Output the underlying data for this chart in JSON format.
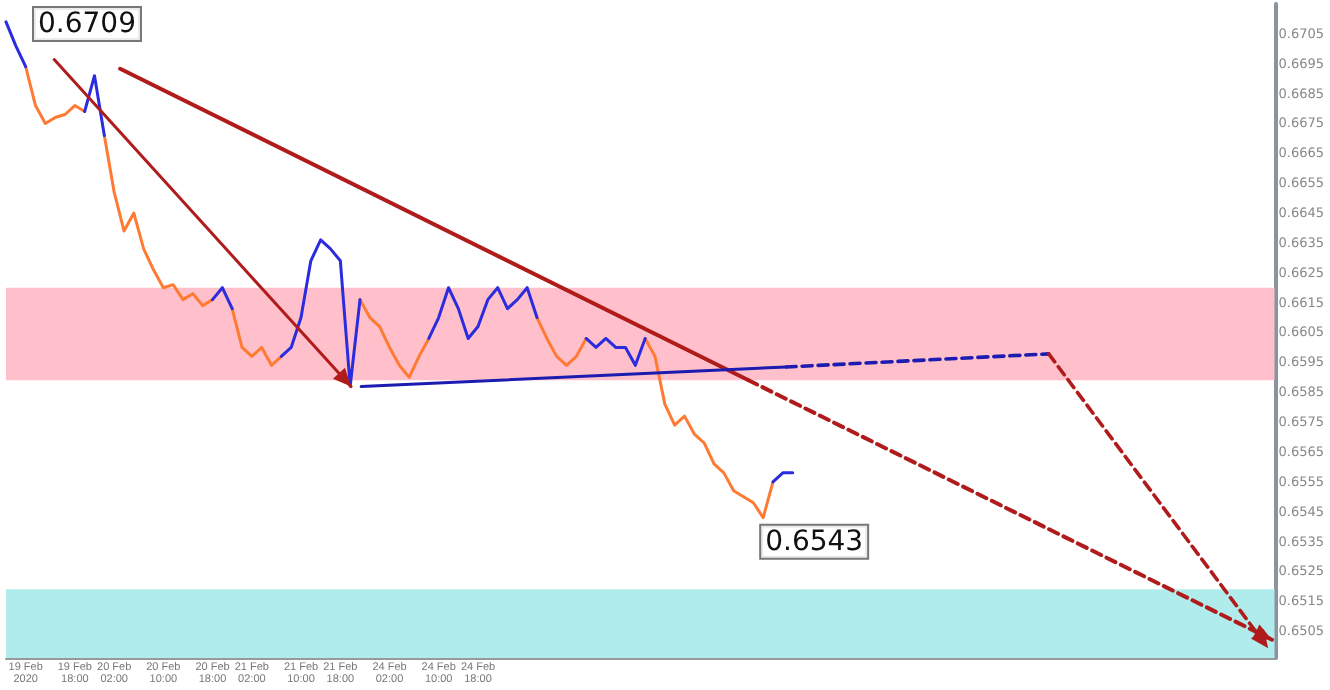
{
  "chart_data": {
    "type": "line",
    "categories": [
      null,
      null,
      "19 Feb 2020",
      null,
      null,
      null,
      null,
      "19 Feb 18:00",
      null,
      null,
      null,
      "20 Feb 02:00",
      null,
      null,
      null,
      null,
      "20 Feb 10:00",
      null,
      null,
      null,
      null,
      "20 Feb 18:00",
      null,
      null,
      null,
      "21 Feb 02:00",
      null,
      null,
      null,
      null,
      "21 Feb 10:00",
      null,
      null,
      null,
      "21 Feb 18:00",
      null,
      null,
      null,
      null,
      "24 Feb 02:00",
      null,
      null,
      null,
      null,
      "24 Feb 10:00",
      null,
      null,
      null,
      "24 Feb 18:00",
      null,
      null,
      null,
      null,
      null,
      null,
      null,
      null,
      null,
      null,
      null,
      null,
      null,
      null,
      null,
      null,
      null,
      null,
      null,
      null,
      null,
      null,
      null,
      null,
      null,
      null,
      null,
      null,
      null,
      null,
      null,
      null,
      null,
      null,
      null,
      null,
      null,
      null,
      null,
      null,
      null,
      null,
      null,
      null,
      null,
      null,
      null,
      null,
      null,
      null,
      null,
      null,
      null,
      null,
      null,
      null,
      null,
      null,
      null,
      null,
      null,
      null,
      null,
      null,
      null,
      null,
      null,
      null,
      null,
      null,
      null,
      null,
      null,
      null,
      null,
      null,
      null,
      null,
      null,
      null,
      null
    ],
    "ylim": [
      0.6496,
      0.6715
    ],
    "yticks": [
      0.6505,
      0.6515,
      0.6525,
      0.6535,
      0.6545,
      0.6555,
      0.6565,
      0.6575,
      0.6585,
      0.6595,
      0.6605,
      0.6615,
      0.6625,
      0.6635,
      0.6645,
      0.6655,
      0.6665,
      0.6675,
      0.6685,
      0.6695,
      0.6705
    ],
    "grid": false,
    "marker": "none",
    "series": [
      {
        "color": "#ff7a33",
        "values": [
          null,
          null,
          0.6694,
          0.6681,
          0.6675,
          0.6677,
          0.6678,
          0.6681,
          0.6679,
          null,
          0.6671,
          0.6652,
          0.6639,
          0.6645,
          0.6633,
          0.6626,
          0.662,
          0.6621,
          0.6616,
          0.6618,
          0.6614,
          0.6616,
          null,
          0.6613,
          0.66,
          0.6597,
          0.66,
          0.6594,
          0.6597,
          null,
          null,
          null,
          null,
          null,
          null,
          null,
          0.6616,
          0.661,
          0.6607,
          0.66,
          0.6594,
          0.659,
          0.6597,
          0.6603,
          null,
          null,
          null,
          null,
          null,
          null,
          null,
          null,
          null,
          null,
          0.661,
          0.6603,
          0.6597,
          0.6594,
          0.6597,
          0.6603,
          null,
          null,
          null,
          null,
          null,
          0.6603,
          0.6597,
          0.6581,
          0.6574,
          0.6577,
          0.6571,
          0.6568,
          0.6561,
          0.6558,
          0.6552,
          0.655,
          0.6548,
          0.6543,
          0.6555,
          null,
          null,
          null,
          null,
          null,
          null,
          null,
          null,
          null,
          null,
          null,
          null,
          null,
          null,
          null,
          null,
          null,
          null,
          null,
          null,
          null,
          null,
          null,
          null,
          null,
          null,
          null,
          null,
          null,
          null,
          null,
          null,
          null,
          null,
          null,
          null,
          null,
          null,
          null,
          null,
          null,
          null,
          null,
          null,
          null,
          null,
          null,
          null,
          null,
          null,
          null
        ],
        "value_labels": [
          null,
          null,
          null,
          null,
          null,
          null,
          null,
          null,
          null,
          null,
          null,
          null,
          null,
          null,
          null,
          null,
          null,
          null,
          null,
          null,
          null,
          null,
          null,
          null,
          null,
          null,
          null,
          null,
          null,
          null,
          null,
          null,
          null,
          null,
          null,
          null,
          null,
          null,
          null,
          null,
          null,
          null,
          null,
          null,
          null,
          null,
          null,
          null,
          null,
          null,
          null,
          null,
          null,
          null,
          null,
          null,
          null,
          null,
          null,
          null,
          null,
          null,
          null,
          null,
          null,
          null,
          null,
          null,
          null,
          null,
          null,
          null,
          null,
          null,
          null,
          null,
          null,
          "0.6543",
          null,
          null,
          null,
          null,
          null,
          null,
          null,
          null,
          null,
          null,
          null,
          null,
          null,
          null,
          null,
          null,
          null,
          null,
          null,
          null,
          null,
          null,
          null,
          null,
          null,
          null,
          null,
          null,
          null,
          null,
          null,
          null,
          null,
          null,
          null,
          null,
          null,
          null,
          null,
          null,
          null,
          null,
          null,
          null,
          null,
          null,
          null,
          null,
          null,
          null,
          null,
          null
        ]
      },
      {
        "color": "#2b2bdf",
        "values": [
          0.6709,
          0.6701,
          0.6694,
          null,
          null,
          null,
          null,
          null,
          0.6679,
          0.6691,
          0.6671,
          null,
          null,
          null,
          null,
          null,
          null,
          null,
          null,
          null,
          null,
          0.6616,
          0.662,
          0.6613,
          null,
          null,
          null,
          null,
          0.6597,
          0.66,
          0.661,
          0.6629,
          0.6636,
          0.6633,
          0.6629,
          0.6587,
          0.6616,
          null,
          null,
          null,
          null,
          null,
          null,
          0.6603,
          0.661,
          0.662,
          0.6613,
          0.6603,
          0.6607,
          0.6616,
          0.662,
          0.6613,
          0.6616,
          0.662,
          0.661,
          null,
          null,
          null,
          null,
          0.6603,
          0.66,
          0.6603,
          0.66,
          0.66,
          0.6594,
          0.6603,
          null,
          null,
          null,
          null,
          null,
          null,
          null,
          null,
          null,
          null,
          null,
          null,
          0.6555,
          0.6558,
          0.6558,
          null,
          null,
          null,
          null,
          null,
          null,
          null,
          null,
          null,
          null,
          null,
          null,
          null,
          null,
          null,
          null,
          null,
          null,
          null,
          null,
          null,
          null,
          null,
          null,
          null,
          null,
          null,
          null,
          null,
          null,
          null,
          null,
          null,
          null,
          null,
          null,
          null,
          null,
          null,
          null,
          null,
          null,
          null,
          null,
          null,
          null,
          null,
          null,
          null
        ],
        "value_labels": [
          "0.6709",
          null,
          null,
          null,
          null,
          null,
          null,
          null,
          null,
          null,
          null,
          null,
          null,
          null,
          null,
          null,
          null,
          null,
          null,
          null,
          null,
          null,
          null,
          null,
          null,
          null,
          null,
          null,
          null,
          null,
          null,
          null,
          null,
          null,
          null,
          null,
          null,
          null,
          null,
          null,
          null,
          null,
          null,
          null,
          null,
          null,
          null,
          null,
          null,
          null,
          null,
          null,
          null,
          null,
          null,
          null,
          null,
          null,
          null,
          null,
          null,
          null,
          null,
          null,
          null,
          null,
          null,
          null,
          null,
          null,
          null,
          null,
          null,
          null,
          null,
          null,
          null,
          null,
          null,
          null,
          null,
          null,
          null,
          null,
          null,
          null,
          null,
          null,
          null,
          null,
          null,
          null,
          null,
          null,
          null,
          null,
          null,
          null,
          null,
          null,
          null,
          null,
          null,
          null,
          null,
          null,
          null,
          null,
          null,
          null,
          null,
          null,
          null,
          null,
          null,
          null,
          null,
          null,
          null,
          null,
          null,
          null,
          null,
          null,
          null,
          null,
          null,
          null,
          null,
          null
        ]
      }
    ],
    "bands": [
      {
        "axis": "y",
        "from": 0.6589,
        "to": 0.662,
        "color": "#ffc0cb"
      },
      {
        "axis": "y",
        "from": 0.6496,
        "to": 0.6519,
        "color": "#b0ecec"
      }
    ]
  }
}
